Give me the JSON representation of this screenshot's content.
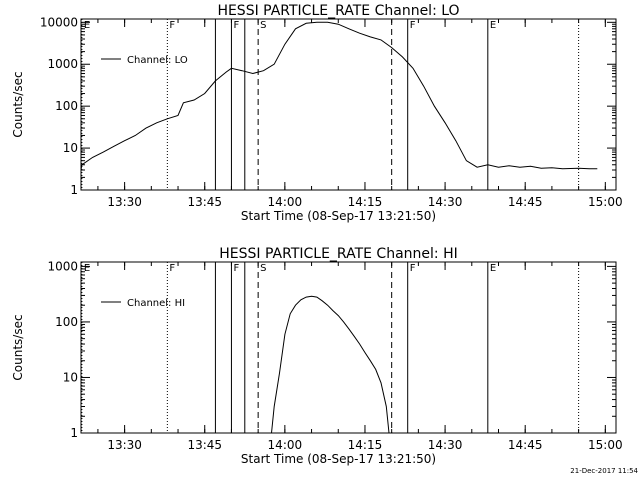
{
  "footer": {
    "timestamp": "21-Dec-2017 11:54"
  },
  "chart_data": [
    {
      "type": "line",
      "title": "HESSI PARTICLE_RATE Channel: LO",
      "xlabel": "Start Time (08-Sep-17 13:21:50)",
      "ylabel": "Counts/sec",
      "yscale": "log",
      "ylim": [
        1,
        12000
      ],
      "xlim": [
        "13:21:50",
        "15:02:00"
      ],
      "x_ticks": [
        "13:30",
        "13:45",
        "14:00",
        "14:15",
        "14:30",
        "14:45",
        "15:00"
      ],
      "y_ticks": [
        "1",
        "10",
        "100",
        "1000",
        "10000"
      ],
      "legend": {
        "position": "top-left",
        "entries": [
          "Channel: LO"
        ]
      },
      "series": [
        {
          "name": "Channel: LO",
          "x": [
            "13:21:50",
            "13:22:00",
            "13:24:00",
            "13:26:00",
            "13:28:00",
            "13:30:00",
            "13:32:00",
            "13:34:00",
            "13:36:00",
            "13:38:00",
            "13:40:00",
            "13:41:00",
            "13:43:00",
            "13:45:00",
            "13:47:00",
            "13:49:00",
            "13:50:00",
            "13:52:00",
            "13:54:00",
            "13:56:00",
            "13:58:00",
            "14:00:00",
            "14:02:00",
            "14:04:00",
            "14:06:00",
            "14:08:00",
            "14:10:00",
            "14:12:00",
            "14:14:00",
            "14:16:00",
            "14:18:00",
            "14:20:00",
            "14:22:00",
            "14:24:00",
            "14:26:00",
            "14:28:00",
            "14:30:00",
            "14:32:00",
            "14:34:00",
            "14:36:00",
            "14:38:00",
            "14:40:00",
            "14:42:00",
            "14:44:00",
            "14:46:00",
            "14:48:00",
            "14:50:00",
            "14:52:00",
            "14:55:00",
            "14:57:00",
            "14:58:30"
          ],
          "values": [
            3,
            4,
            6,
            8,
            11,
            15,
            20,
            30,
            40,
            50,
            60,
            120,
            140,
            200,
            400,
            650,
            800,
            700,
            600,
            700,
            1000,
            3000,
            7000,
            9500,
            10000,
            10000,
            9000,
            7000,
            5500,
            4500,
            3800,
            2500,
            1500,
            800,
            300,
            100,
            40,
            15,
            5,
            3.5,
            4,
            3.5,
            3.8,
            3.5,
            3.7,
            3.3,
            3.4,
            3.2,
            3.3,
            3.2,
            3.2
          ]
        }
      ],
      "annotations": [
        {
          "label": "E",
          "time": "13:22:00",
          "style": "dotted"
        },
        {
          "label": "F",
          "time": "13:38:00",
          "style": "dotted"
        },
        {
          "label": "",
          "time": "13:47:00",
          "style": "solid"
        },
        {
          "label": "F",
          "time": "13:50:00",
          "style": "solid"
        },
        {
          "label": "",
          "time": "13:52:30",
          "style": "solid"
        },
        {
          "label": "S",
          "time": "13:55:00",
          "style": "dashed"
        },
        {
          "label": "",
          "time": "14:20:00",
          "style": "dashed"
        },
        {
          "label": "F",
          "time": "14:23:00",
          "style": "solid"
        },
        {
          "label": "E",
          "time": "14:38:00",
          "style": "solid"
        },
        {
          "label": "",
          "time": "14:55:00",
          "style": "dotted"
        }
      ]
    },
    {
      "type": "line",
      "title": "HESSI PARTICLE_RATE Channel: HI",
      "xlabel": "Start Time (08-Sep-17 13:21:50)",
      "ylabel": "Counts/sec",
      "yscale": "log",
      "ylim": [
        1,
        1200
      ],
      "xlim": [
        "13:21:50",
        "15:02:00"
      ],
      "x_ticks": [
        "13:30",
        "13:45",
        "14:00",
        "14:15",
        "14:30",
        "14:45",
        "15:00"
      ],
      "y_ticks": [
        "1",
        "10",
        "100",
        "1000"
      ],
      "legend": {
        "position": "top-left",
        "entries": [
          "Channel: HI"
        ]
      },
      "series": [
        {
          "name": "Channel: HI",
          "x": [
            "13:57:30",
            "13:58:00",
            "13:59:00",
            "14:00:00",
            "14:01:00",
            "14:02:00",
            "14:03:00",
            "14:04:00",
            "14:05:00",
            "14:06:00",
            "14:07:00",
            "14:08:00",
            "14:09:00",
            "14:10:00",
            "14:11:00",
            "14:12:00",
            "14:13:00",
            "14:14:00",
            "14:15:00",
            "14:16:00",
            "14:17:00",
            "14:18:00",
            "14:19:00",
            "14:19:30"
          ],
          "values": [
            1,
            3,
            12,
            60,
            140,
            200,
            250,
            280,
            290,
            280,
            240,
            200,
            160,
            130,
            100,
            75,
            55,
            40,
            28,
            20,
            14,
            8,
            3,
            1
          ]
        }
      ],
      "annotations": [
        {
          "label": "E",
          "time": "13:22:00",
          "style": "dotted"
        },
        {
          "label": "F",
          "time": "13:38:00",
          "style": "dotted"
        },
        {
          "label": "",
          "time": "13:47:00",
          "style": "solid"
        },
        {
          "label": "F",
          "time": "13:50:00",
          "style": "solid"
        },
        {
          "label": "",
          "time": "13:52:30",
          "style": "solid"
        },
        {
          "label": "S",
          "time": "13:55:00",
          "style": "dashed"
        },
        {
          "label": "",
          "time": "14:20:00",
          "style": "dashed"
        },
        {
          "label": "F",
          "time": "14:23:00",
          "style": "solid"
        },
        {
          "label": "E",
          "time": "14:38:00",
          "style": "solid"
        },
        {
          "label": "",
          "time": "14:55:00",
          "style": "dotted"
        }
      ]
    }
  ]
}
